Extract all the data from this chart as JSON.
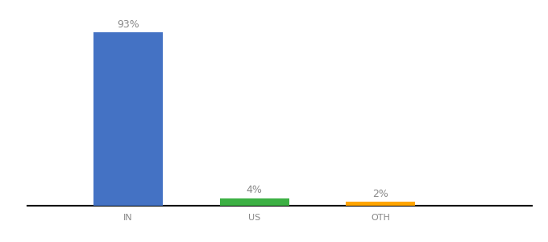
{
  "categories": [
    "IN",
    "US",
    "OTH"
  ],
  "values": [
    93,
    4,
    2
  ],
  "labels": [
    "93%",
    "4%",
    "2%"
  ],
  "bar_colors": [
    "#4472C4",
    "#3CB043",
    "#FFA500"
  ],
  "background_color": "#ffffff",
  "ylim": [
    0,
    100
  ],
  "bar_width": 0.55,
  "label_fontsize": 9,
  "tick_fontsize": 8,
  "spine_color": "#000000",
  "label_color": "#888888",
  "tick_color": "#888888"
}
